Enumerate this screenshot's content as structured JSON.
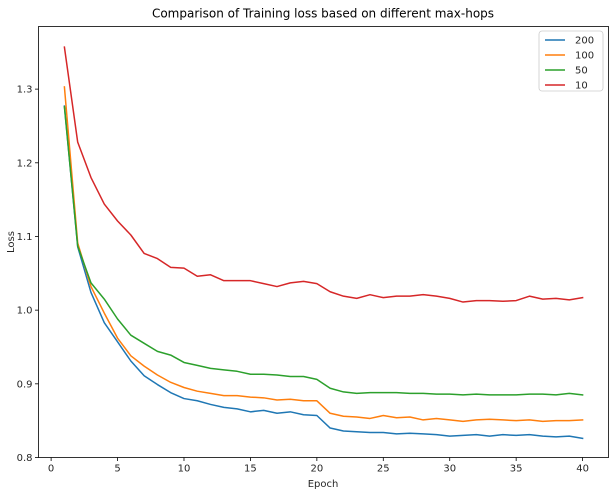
{
  "chart_data": {
    "type": "line",
    "title": "Comparison of Training loss based on different max-hops",
    "xlabel": "Epoch",
    "ylabel": "Loss",
    "xlim": [
      -0.95,
      41.95
    ],
    "ylim": [
      0.8,
      1.385
    ],
    "xticks": [
      0,
      5,
      10,
      15,
      20,
      25,
      30,
      35,
      40
    ],
    "yticks": [
      0.8,
      0.9,
      1.0,
      1.1,
      1.2,
      1.3
    ],
    "ytick_labels": [
      "0.8",
      "0.9",
      "1.0",
      "1.1",
      "1.2",
      "1.3"
    ],
    "grid": false,
    "legend_position": "top-right",
    "x": [
      1,
      2,
      3,
      4,
      5,
      6,
      7,
      8,
      9,
      10,
      11,
      12,
      13,
      14,
      15,
      16,
      17,
      18,
      19,
      20,
      21,
      22,
      23,
      24,
      25,
      26,
      27,
      28,
      29,
      30,
      31,
      32,
      33,
      34,
      35,
      36,
      37,
      38,
      39,
      40
    ],
    "series": [
      {
        "name": "200",
        "color": "#1f77b4",
        "values": [
          1.277,
          1.086,
          1.024,
          0.983,
          0.957,
          0.931,
          0.911,
          0.899,
          0.888,
          0.88,
          0.877,
          0.872,
          0.868,
          0.866,
          0.862,
          0.864,
          0.86,
          0.862,
          0.858,
          0.857,
          0.84,
          0.836,
          0.835,
          0.834,
          0.834,
          0.832,
          0.833,
          0.832,
          0.831,
          0.829,
          0.83,
          0.831,
          0.829,
          0.831,
          0.83,
          0.831,
          0.829,
          0.828,
          0.829,
          0.826
        ]
      },
      {
        "name": "100",
        "color": "#ff7f0e",
        "values": [
          1.303,
          1.091,
          1.032,
          0.996,
          0.962,
          0.938,
          0.924,
          0.912,
          0.902,
          0.895,
          0.89,
          0.887,
          0.884,
          0.884,
          0.882,
          0.881,
          0.878,
          0.879,
          0.877,
          0.877,
          0.86,
          0.856,
          0.855,
          0.853,
          0.857,
          0.854,
          0.855,
          0.851,
          0.853,
          0.851,
          0.849,
          0.851,
          0.852,
          0.851,
          0.85,
          0.851,
          0.849,
          0.85,
          0.85,
          0.851
        ]
      },
      {
        "name": "50",
        "color": "#2ca02c",
        "values": [
          1.276,
          1.087,
          1.037,
          1.015,
          0.988,
          0.966,
          0.955,
          0.944,
          0.939,
          0.929,
          0.925,
          0.921,
          0.919,
          0.917,
          0.913,
          0.913,
          0.912,
          0.91,
          0.91,
          0.906,
          0.894,
          0.889,
          0.887,
          0.888,
          0.888,
          0.888,
          0.887,
          0.887,
          0.886,
          0.886,
          0.885,
          0.886,
          0.885,
          0.885,
          0.885,
          0.886,
          0.886,
          0.885,
          0.887,
          0.885
        ]
      },
      {
        "name": "10",
        "color": "#d62728",
        "values": [
          1.357,
          1.228,
          1.18,
          1.144,
          1.121,
          1.102,
          1.077,
          1.07,
          1.058,
          1.057,
          1.046,
          1.048,
          1.04,
          1.04,
          1.04,
          1.036,
          1.032,
          1.037,
          1.039,
          1.036,
          1.025,
          1.019,
          1.016,
          1.021,
          1.017,
          1.019,
          1.019,
          1.021,
          1.019,
          1.016,
          1.011,
          1.013,
          1.013,
          1.012,
          1.013,
          1.019,
          1.015,
          1.016,
          1.014,
          1.017
        ]
      }
    ]
  }
}
